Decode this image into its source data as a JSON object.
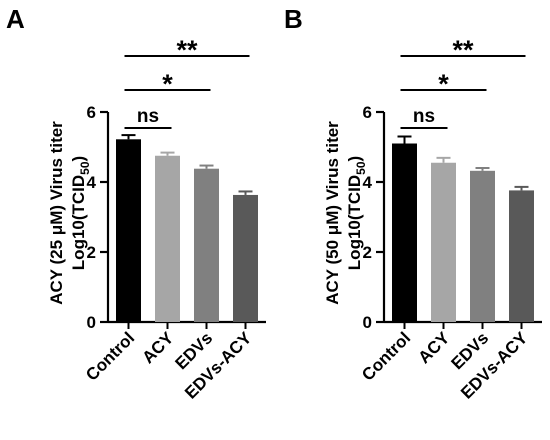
{
  "chart_data": [
    {
      "type": "bar",
      "panel": "A",
      "ylabel_line1": "ACY (25 μM) Virus titer",
      "ylabel_line2_main": "Log10(TCID",
      "ylabel_line2_sub": "50",
      "ylabel_line2_end": ")",
      "categories": [
        "Control",
        "ACY",
        "EDVs",
        "EDVs-ACY"
      ],
      "values": [
        5.22,
        4.75,
        4.38,
        3.63
      ],
      "errors": [
        0.12,
        0.09,
        0.09,
        0.1
      ],
      "colors": [
        "#000000",
        "#a6a6a6",
        "#808080",
        "#595959"
      ],
      "ylim": [
        0,
        6
      ],
      "yticks": [
        "0",
        "2",
        "4",
        "6"
      ],
      "comparisons": [
        {
          "from": "Control",
          "to": "ACY",
          "label": "ns",
          "type": "ns"
        },
        {
          "from": "Control",
          "to": "EDVs",
          "label": "*",
          "type": "star"
        },
        {
          "from": "Control",
          "to": "EDVs-ACY",
          "label": "**",
          "type": "star"
        }
      ]
    },
    {
      "type": "bar",
      "panel": "B",
      "ylabel_line1": "ACY (50 μM) Virus titer",
      "ylabel_line2_main": "Log10(TCID",
      "ylabel_line2_sub": "50",
      "ylabel_line2_end": ")",
      "categories": [
        "Control",
        "ACY",
        "EDVs",
        "EDVs-ACY"
      ],
      "values": [
        5.1,
        4.55,
        4.32,
        3.76
      ],
      "errors": [
        0.2,
        0.14,
        0.08,
        0.1
      ],
      "colors": [
        "#000000",
        "#a6a6a6",
        "#808080",
        "#595959"
      ],
      "ylim": [
        0,
        6
      ],
      "yticks": [
        "0",
        "2",
        "4",
        "6"
      ],
      "comparisons": [
        {
          "from": "Control",
          "to": "ACY",
          "label": "ns",
          "type": "ns"
        },
        {
          "from": "Control",
          "to": "EDVs",
          "label": "*",
          "type": "star"
        },
        {
          "from": "Control",
          "to": "EDVs-ACY",
          "label": "**",
          "type": "star"
        }
      ]
    }
  ]
}
